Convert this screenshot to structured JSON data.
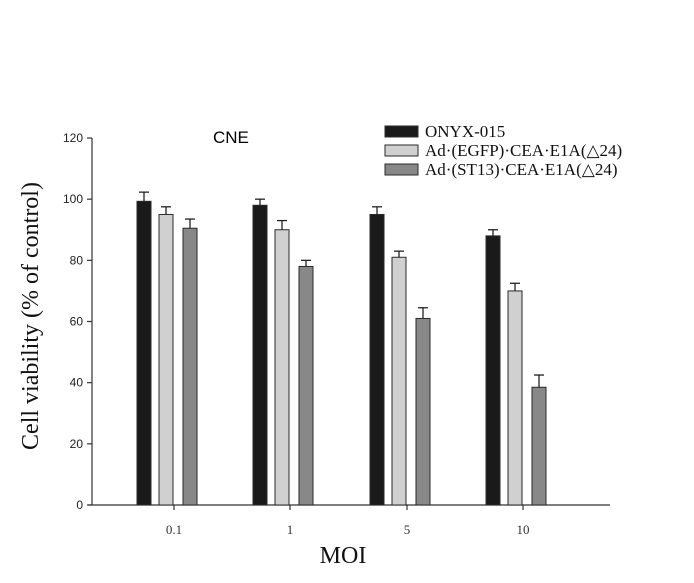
{
  "chart_data": {
    "type": "bar",
    "title": "CNE",
    "xlabel": "MOI",
    "ylabel": "Cell viability (% of control)",
    "categories": [
      "0.1",
      "1",
      "5",
      "10"
    ],
    "ylim": [
      0,
      120
    ],
    "yticks": [
      0,
      20,
      40,
      60,
      80,
      100,
      120
    ],
    "grid": false,
    "legend_position": "top-right",
    "series": [
      {
        "name": "ONYX-015",
        "color": "#1a1a1a",
        "values": [
          99.3,
          98,
          95,
          88
        ],
        "errors": [
          3,
          2,
          2.5,
          2
        ]
      },
      {
        "name": "Ad·(EGFP)·CEA·E1A(△24)",
        "color": "#d0d0d0",
        "values": [
          95,
          90,
          81,
          70
        ],
        "errors": [
          2.5,
          3,
          2,
          2.5
        ]
      },
      {
        "name": "Ad·(ST13)·CEA·E1A(△24)",
        "color": "#888888",
        "values": [
          90.5,
          78,
          61,
          38.5
        ],
        "errors": [
          3,
          2,
          3.5,
          4
        ]
      }
    ]
  }
}
